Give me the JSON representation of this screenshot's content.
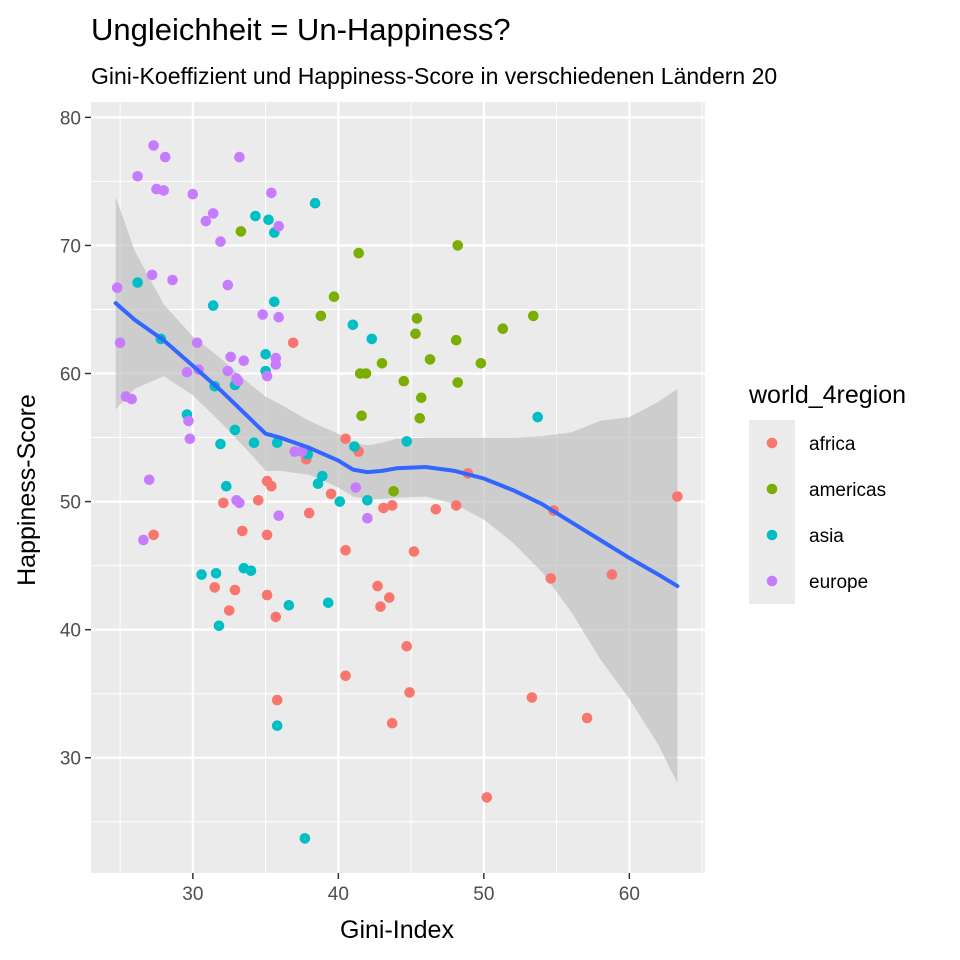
{
  "chart_data": {
    "type": "scatter",
    "title": "Ungleichheit = Un-Happiness?",
    "subtitle": "Gini-Koeffizient und Happiness-Score in verschiedenen Ländern 20",
    "xlabel": "Gini-Index",
    "ylabel": "Happiness-Score",
    "xlim": [
      23,
      65.2
    ],
    "ylim": [
      21,
      81.2
    ],
    "x_ticks": [
      30,
      40,
      50,
      60
    ],
    "y_ticks": [
      30,
      40,
      50,
      60,
      70,
      80
    ],
    "grid": true,
    "legend": {
      "title": "world_4region",
      "position": "right",
      "entries": [
        "africa",
        "americas",
        "asia",
        "europe"
      ]
    },
    "colors": {
      "africa": "#F8766D",
      "americas": "#7CAE00",
      "asia": "#00BFC4",
      "europe": "#C77CFF",
      "smooth_line": "#3366FF",
      "ribbon": "#BDBDBD",
      "panel_bg": "#EBEBEB",
      "grid": "#FFFFFF"
    },
    "series": [
      {
        "name": "africa",
        "points": [
          [
            36.9,
            62.4
          ],
          [
            40.5,
            54.9
          ],
          [
            41.4,
            53.9
          ],
          [
            35.1,
            51.6
          ],
          [
            35.4,
            51.2
          ],
          [
            34.5,
            50.1
          ],
          [
            32.1,
            49.9
          ],
          [
            33.4,
            47.7
          ],
          [
            35.1,
            47.4
          ],
          [
            38.0,
            49.1
          ],
          [
            37.8,
            53.3
          ],
          [
            39.5,
            50.6
          ],
          [
            43.1,
            49.5
          ],
          [
            43.7,
            49.7
          ],
          [
            46.7,
            49.4
          ],
          [
            48.1,
            49.7
          ],
          [
            48.9,
            52.2
          ],
          [
            40.5,
            46.2
          ],
          [
            45.2,
            46.1
          ],
          [
            27.3,
            47.4
          ],
          [
            31.5,
            43.3
          ],
          [
            32.9,
            43.1
          ],
          [
            32.5,
            41.5
          ],
          [
            35.1,
            42.7
          ],
          [
            35.7,
            41.0
          ],
          [
            42.7,
            43.4
          ],
          [
            43.5,
            42.5
          ],
          [
            42.9,
            41.8
          ],
          [
            44.7,
            38.7
          ],
          [
            40.5,
            36.4
          ],
          [
            44.9,
            35.1
          ],
          [
            43.7,
            32.7
          ],
          [
            35.8,
            34.5
          ],
          [
            53.3,
            34.7
          ],
          [
            57.1,
            33.1
          ],
          [
            50.2,
            26.9
          ],
          [
            54.6,
            44.0
          ],
          [
            54.8,
            49.3
          ],
          [
            58.8,
            44.3
          ],
          [
            63.3,
            50.4
          ]
        ]
      },
      {
        "name": "americas",
        "points": [
          [
            33.3,
            71.1
          ],
          [
            41.4,
            69.4
          ],
          [
            48.2,
            70.0
          ],
          [
            39.7,
            66.0
          ],
          [
            45.3,
            63.1
          ],
          [
            45.4,
            64.3
          ],
          [
            51.3,
            63.5
          ],
          [
            53.4,
            64.5
          ],
          [
            38.8,
            64.5
          ],
          [
            48.1,
            62.6
          ],
          [
            46.3,
            61.1
          ],
          [
            49.8,
            60.8
          ],
          [
            43.0,
            60.8
          ],
          [
            41.5,
            60.0
          ],
          [
            41.9,
            60.0
          ],
          [
            44.5,
            59.4
          ],
          [
            48.2,
            59.3
          ],
          [
            45.7,
            58.1
          ],
          [
            41.6,
            56.7
          ],
          [
            45.6,
            56.5
          ],
          [
            43.8,
            50.8
          ]
        ]
      },
      {
        "name": "asia",
        "points": [
          [
            34.3,
            72.3
          ],
          [
            35.2,
            72.0
          ],
          [
            38.4,
            73.3
          ],
          [
            35.6,
            71.0
          ],
          [
            26.2,
            67.1
          ],
          [
            31.4,
            65.3
          ],
          [
            35.6,
            65.6
          ],
          [
            41.0,
            63.8
          ],
          [
            42.3,
            62.7
          ],
          [
            27.8,
            62.7
          ],
          [
            35.0,
            61.5
          ],
          [
            35.0,
            60.2
          ],
          [
            31.5,
            59.0
          ],
          [
            32.9,
            59.1
          ],
          [
            29.6,
            56.8
          ],
          [
            32.9,
            55.6
          ],
          [
            31.9,
            54.5
          ],
          [
            34.2,
            54.6
          ],
          [
            35.8,
            54.6
          ],
          [
            37.9,
            53.7
          ],
          [
            38.9,
            52.0
          ],
          [
            38.6,
            51.4
          ],
          [
            41.1,
            54.3
          ],
          [
            40.1,
            50.0
          ],
          [
            42.0,
            50.1
          ],
          [
            44.7,
            54.7
          ],
          [
            32.3,
            51.2
          ],
          [
            30.6,
            44.3
          ],
          [
            31.6,
            44.4
          ],
          [
            33.5,
            44.8
          ],
          [
            34.0,
            44.6
          ],
          [
            36.6,
            41.9
          ],
          [
            39.3,
            42.1
          ],
          [
            31.8,
            40.3
          ],
          [
            35.8,
            32.5
          ],
          [
            37.7,
            23.7
          ],
          [
            53.7,
            56.6
          ]
        ]
      },
      {
        "name": "europe",
        "points": [
          [
            27.3,
            77.8
          ],
          [
            28.1,
            76.9
          ],
          [
            33.2,
            76.9
          ],
          [
            26.2,
            75.4
          ],
          [
            27.5,
            74.4
          ],
          [
            28.0,
            74.3
          ],
          [
            30.0,
            74.0
          ],
          [
            35.4,
            74.1
          ],
          [
            31.4,
            72.5
          ],
          [
            30.9,
            71.9
          ],
          [
            35.9,
            71.5
          ],
          [
            31.9,
            70.3
          ],
          [
            27.2,
            67.7
          ],
          [
            28.6,
            67.3
          ],
          [
            24.8,
            66.7
          ],
          [
            32.4,
            66.9
          ],
          [
            34.8,
            64.6
          ],
          [
            35.9,
            64.4
          ],
          [
            25.0,
            62.4
          ],
          [
            30.3,
            62.4
          ],
          [
            32.6,
            61.3
          ],
          [
            33.5,
            61.0
          ],
          [
            35.7,
            61.2
          ],
          [
            35.7,
            60.7
          ],
          [
            30.4,
            60.3
          ],
          [
            29.6,
            60.1
          ],
          [
            32.4,
            60.2
          ],
          [
            33.0,
            59.6
          ],
          [
            33.1,
            59.4
          ],
          [
            35.1,
            59.8
          ],
          [
            25.4,
            58.2
          ],
          [
            25.8,
            58.0
          ],
          [
            29.7,
            56.3
          ],
          [
            29.8,
            54.9
          ],
          [
            37.5,
            53.9
          ],
          [
            37.0,
            53.9
          ],
          [
            27.0,
            51.7
          ],
          [
            41.2,
            51.1
          ],
          [
            26.6,
            47.0
          ],
          [
            33.0,
            50.1
          ],
          [
            33.2,
            49.9
          ],
          [
            35.9,
            48.9
          ],
          [
            42.0,
            48.7
          ]
        ]
      }
    ],
    "smooth": {
      "x": [
        24.7,
        26,
        28,
        30,
        32,
        34,
        35,
        36,
        38,
        40,
        41,
        42,
        43,
        44,
        46,
        48,
        50,
        52,
        54,
        56,
        58,
        60,
        62,
        63.3
      ],
      "y": [
        65.5,
        64.2,
        62.6,
        60.6,
        58.6,
        56.4,
        55.3,
        55.0,
        54.2,
        53.2,
        52.5,
        52.3,
        52.4,
        52.6,
        52.7,
        52.4,
        51.8,
        50.9,
        49.8,
        48.4,
        47.0,
        45.6,
        44.3,
        43.4
      ],
      "lower": [
        57.2,
        58.8,
        59.8,
        58.3,
        56.1,
        53.7,
        52.4,
        52.4,
        52.1,
        51.1,
        50.4,
        50.2,
        50.2,
        50.3,
        50.4,
        49.8,
        48.6,
        46.8,
        44.5,
        41.4,
        37.7,
        34.6,
        31.0,
        28.0
      ],
      "upper": [
        73.8,
        69.6,
        65.4,
        62.9,
        61.1,
        59.1,
        58.2,
        57.6,
        56.3,
        55.3,
        54.6,
        54.4,
        54.6,
        54.9,
        55.0,
        55.0,
        55.0,
        55.0,
        55.1,
        55.4,
        56.3,
        56.6,
        57.8,
        58.8
      ]
    }
  }
}
